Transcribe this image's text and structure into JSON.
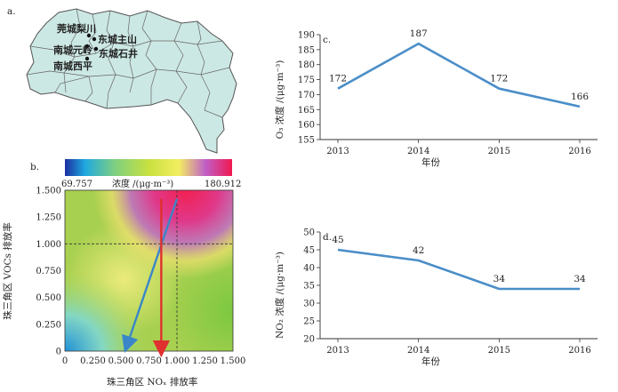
{
  "panel_a": {
    "letter": "a.",
    "locations": [
      "莞城梨川",
      "东城主山",
      "南城元岭",
      "东城石井",
      "南城西平"
    ]
  },
  "chart_data": [
    {
      "id": "b",
      "letter": "b.",
      "type": "heatmap",
      "colorbar": {
        "min_label": "69.757",
        "max_label": "180.912",
        "title": "浓度 /(μg·m⁻³)",
        "min": 69.757,
        "max": 180.912
      },
      "xlabel": "珠三角区 NOₓ 排放率",
      "ylabel": "珠三角区 VOCs 排放率",
      "xlim": [
        0,
        1.5
      ],
      "ylim": [
        0,
        1.5
      ],
      "xticks": [
        "0",
        "0.250",
        "0.500",
        "0.750",
        "1.000",
        "1.250",
        "1.500"
      ],
      "yticks": [
        "0",
        "0.250",
        "0.500",
        "0.750",
        "1.000",
        "1.250",
        "1.500"
      ],
      "xtick_values": [
        0,
        0.25,
        0.5,
        0.75,
        1.0,
        1.25,
        1.5
      ],
      "ytick_values": [
        0,
        0.25,
        0.5,
        0.75,
        1.0,
        1.25,
        1.5
      ],
      "reference_point": [
        1.0,
        1.0
      ],
      "arrows": [
        {
          "from": [
            1.0,
            1.42
          ],
          "to": [
            0.55,
            0.04
          ],
          "color": "#3a86c8"
        },
        {
          "from": [
            0.86,
            1.42
          ],
          "to": [
            0.86,
            0.0
          ],
          "color": "#e03030"
        }
      ]
    },
    {
      "id": "c",
      "letter": "c.",
      "type": "line",
      "categories": [
        "2013",
        "2014",
        "2015",
        "2016"
      ],
      "values": [
        172,
        187,
        172,
        166
      ],
      "data_labels": [
        "172",
        "187",
        "172",
        "166"
      ],
      "ylim": [
        155,
        190
      ],
      "yticks": [
        155,
        160,
        165,
        170,
        175,
        180,
        185,
        190
      ],
      "ylabel": "O₃ 浓度 /(μg·m⁻³)",
      "xlabel": "年份",
      "color": "#4a8ec8"
    },
    {
      "id": "d",
      "letter": "d.",
      "type": "line",
      "categories": [
        "2013",
        "2014",
        "2015",
        "2016"
      ],
      "values": [
        45,
        42,
        34,
        34
      ],
      "data_labels": [
        "45",
        "42",
        "34",
        "34"
      ],
      "ylim": [
        20,
        50
      ],
      "yticks": [
        20,
        25,
        30,
        35,
        40,
        45,
        50
      ],
      "ylabel": "NO₂ 浓度 /(μg·m⁻³)",
      "xlabel": "年份",
      "color": "#4a8ec8"
    }
  ]
}
